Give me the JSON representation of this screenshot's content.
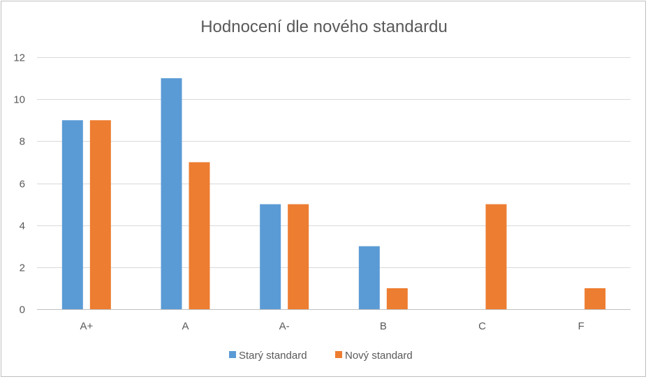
{
  "chart_data": {
    "type": "bar",
    "title": "Hodnocení dle nového standardu",
    "xlabel": "",
    "ylabel": "",
    "categories": [
      "A+",
      "A",
      "A-",
      "B",
      "C",
      "F"
    ],
    "series": [
      {
        "name": "Starý standard",
        "color": "#5b9bd5",
        "values": [
          9,
          11,
          5,
          3,
          0,
          0
        ]
      },
      {
        "name": "Nový standard",
        "color": "#ed7d31",
        "values": [
          9,
          7,
          5,
          1,
          5,
          1
        ]
      }
    ],
    "ylim": [
      0,
      12
    ],
    "yticks": [
      0,
      2,
      4,
      6,
      8,
      10,
      12
    ],
    "grid": true,
    "legend_position": "bottom"
  }
}
